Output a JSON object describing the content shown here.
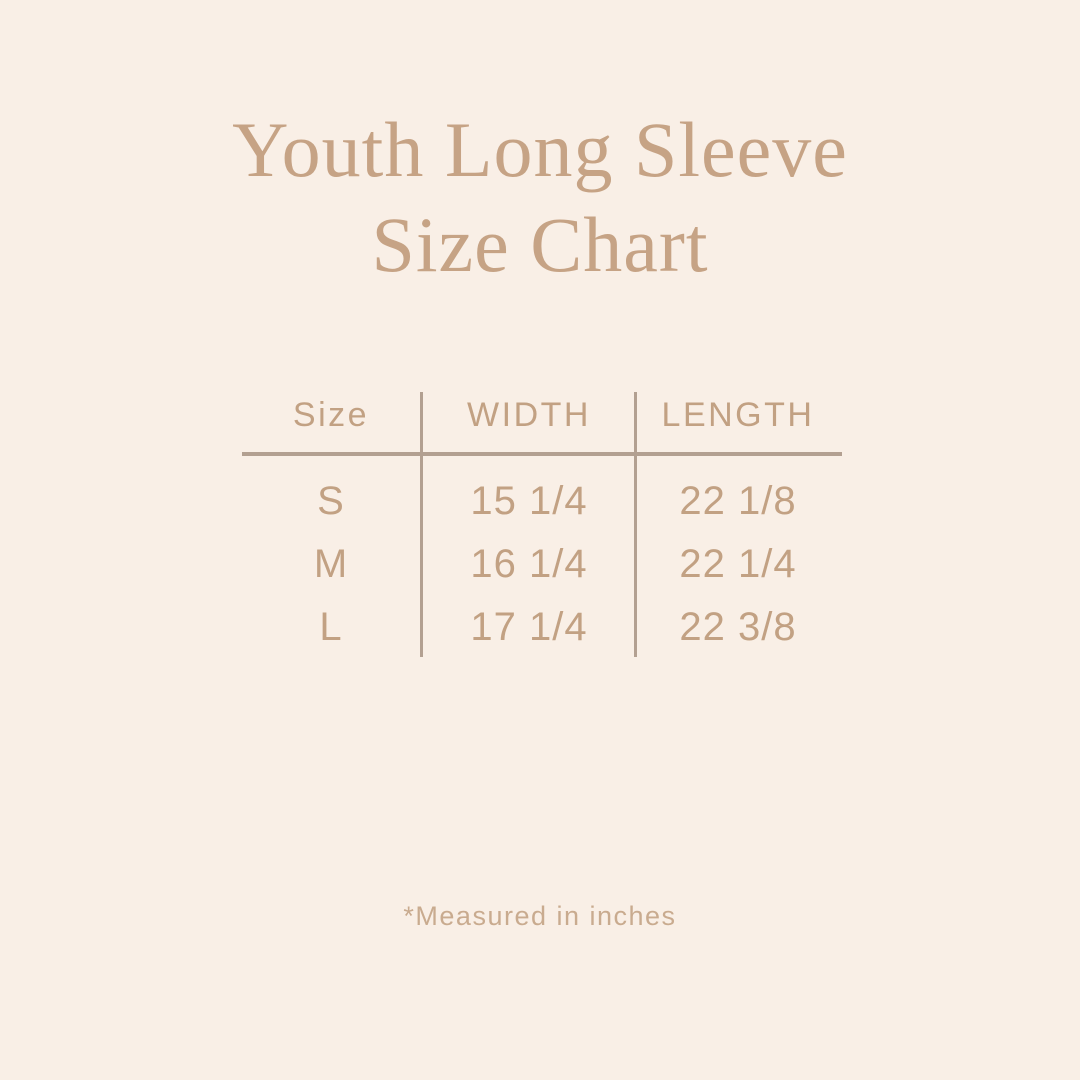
{
  "theme": {
    "background": "#f9efe6",
    "title_color": "#c6a385",
    "text_color": "#c2a183",
    "line_color": "#b3a091",
    "footnote_color": "#c9ab8f"
  },
  "title": {
    "line1": "Youth Long Sleeve",
    "line2": "Size Chart"
  },
  "table": {
    "headers": [
      "Size",
      "WIDTH",
      "LENGTH"
    ],
    "rows": [
      [
        "S",
        "15 1/4",
        "22 1/8"
      ],
      [
        "M",
        "16 1/4",
        "22 1/4"
      ],
      [
        "L",
        "17 1/4",
        "22 3/8"
      ]
    ]
  },
  "footnote": {
    "text": "*Measured in inches"
  },
  "chart_data": {
    "type": "table",
    "title": "Youth Long Sleeve Size Chart",
    "columns": [
      "Size",
      "WIDTH",
      "LENGTH"
    ],
    "rows": [
      {
        "size": "S",
        "width_in": 15.25,
        "length_in": 22.125,
        "width_label": "15 1/4",
        "length_label": "22 1/8"
      },
      {
        "size": "M",
        "width_in": 16.25,
        "length_in": 22.25,
        "width_label": "16 1/4",
        "length_label": "22 1/4"
      },
      {
        "size": "L",
        "width_in": 17.25,
        "length_in": 22.375,
        "width_label": "17 1/4",
        "length_label": "22 3/8"
      }
    ],
    "units": "inches",
    "note": "*Measured in inches"
  }
}
